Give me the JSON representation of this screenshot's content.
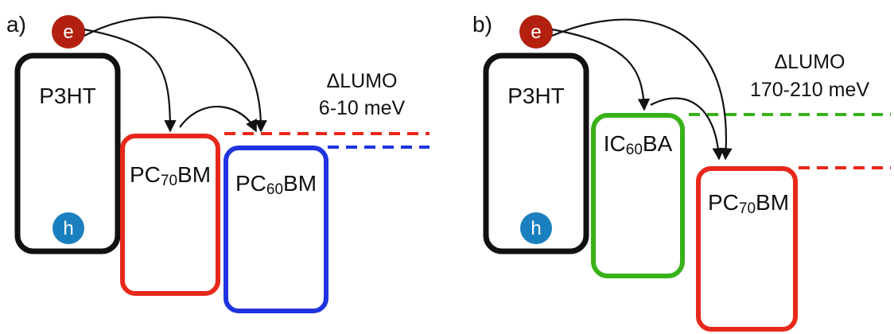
{
  "colors": {
    "black": "#111111",
    "red": "#e8281a",
    "blue": "#1f34e0",
    "green": "#39b21a",
    "electron": "#b3200f",
    "hole": "#1a7fbf"
  },
  "panel_a": {
    "label": "a)",
    "electron": "e",
    "hole": "h",
    "donor": "P3HT",
    "acc1": {
      "pre": "PC",
      "sub": "70",
      "post": "BM"
    },
    "acc2": {
      "pre": "PC",
      "sub": "60",
      "post": "BM"
    },
    "delta_title": "ΔLUMO",
    "delta_value": "6-10 meV"
  },
  "panel_b": {
    "label": "b)",
    "electron": "e",
    "hole": "h",
    "donor": "P3HT",
    "acc1": {
      "pre": "IC",
      "sub": "60",
      "post": "BA"
    },
    "acc2": {
      "pre": "PC",
      "sub": "70",
      "post": "BM"
    },
    "delta_title": "ΔLUMO",
    "delta_value": "170-210 meV"
  }
}
